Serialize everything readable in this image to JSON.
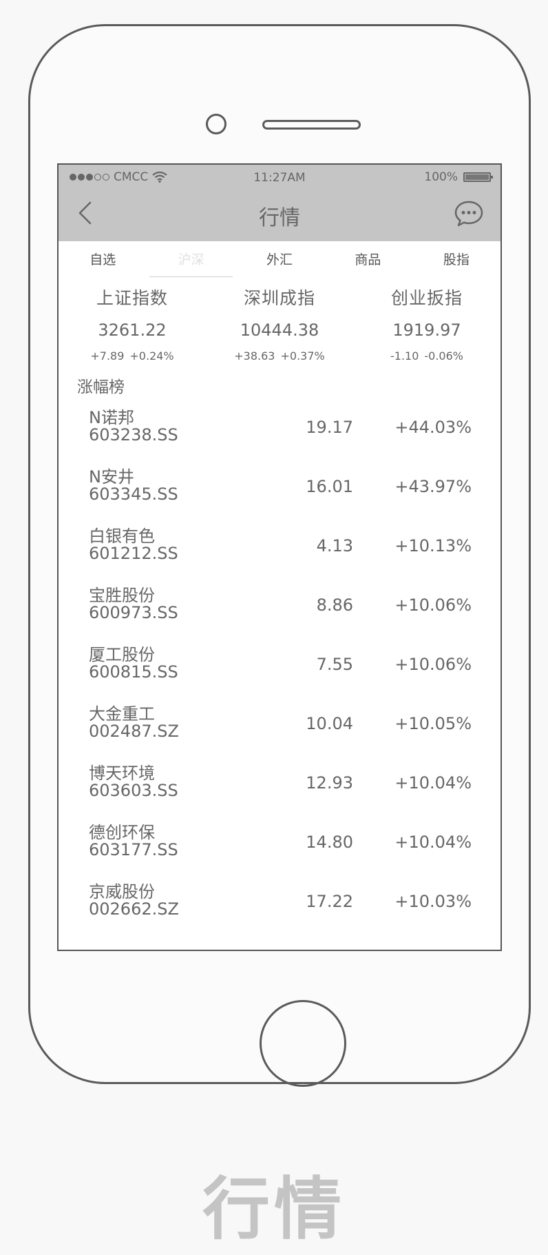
{
  "status_bar": {
    "carrier": "CMCC",
    "time": "11:27AM",
    "battery": "100%",
    "battery_level": 1.0
  },
  "nav": {
    "back_icon": "chevron-left-icon",
    "title": "行情",
    "message_icon": "chat-bubble-icon"
  },
  "tabs": [
    {
      "label": "自选",
      "active": false
    },
    {
      "label": "沪深",
      "active": true
    },
    {
      "label": "外汇",
      "active": false
    },
    {
      "label": "商品",
      "active": false
    },
    {
      "label": "股指",
      "active": false
    }
  ],
  "indices": [
    {
      "name": "上证指数",
      "value": "3261.22",
      "change": "+7.89",
      "percent": "+0.24%"
    },
    {
      "name": "深圳成指",
      "value": "10444.38",
      "change": "+38.63",
      "percent": "+0.37%"
    },
    {
      "name": "创业扳指",
      "value": "1919.97",
      "change": "-1.10",
      "percent": "-0.06%"
    }
  ],
  "section_title": "涨幅榜",
  "stocks": [
    {
      "name": "N诺邦",
      "code": "603238.SS",
      "price": "19.17",
      "change": "+44.03%"
    },
    {
      "name": "N安井",
      "code": "603345.SS",
      "price": "16.01",
      "change": "+43.97%"
    },
    {
      "name": "白银有色",
      "code": "601212.SS",
      "price": "4.13",
      "change": "+10.13%"
    },
    {
      "name": "宝胜股份",
      "code": "600973.SS",
      "price": "8.86",
      "change": "+10.06%"
    },
    {
      "name": "厦工股份",
      "code": "600815.SS",
      "price": "7.55",
      "change": "+10.06%"
    },
    {
      "name": "大金重工",
      "code": "002487.SZ",
      "price": "10.04",
      "change": "+10.05%"
    },
    {
      "name": "博天环境",
      "code": "603603.SS",
      "price": "12.93",
      "change": "+10.04%"
    },
    {
      "name": "德创环保",
      "code": "603177.SS",
      "price": "14.80",
      "change": "+10.04%"
    },
    {
      "name": "京威股份",
      "code": "002662.SZ",
      "price": "17.22",
      "change": "+10.03%"
    }
  ],
  "caption": "行情"
}
